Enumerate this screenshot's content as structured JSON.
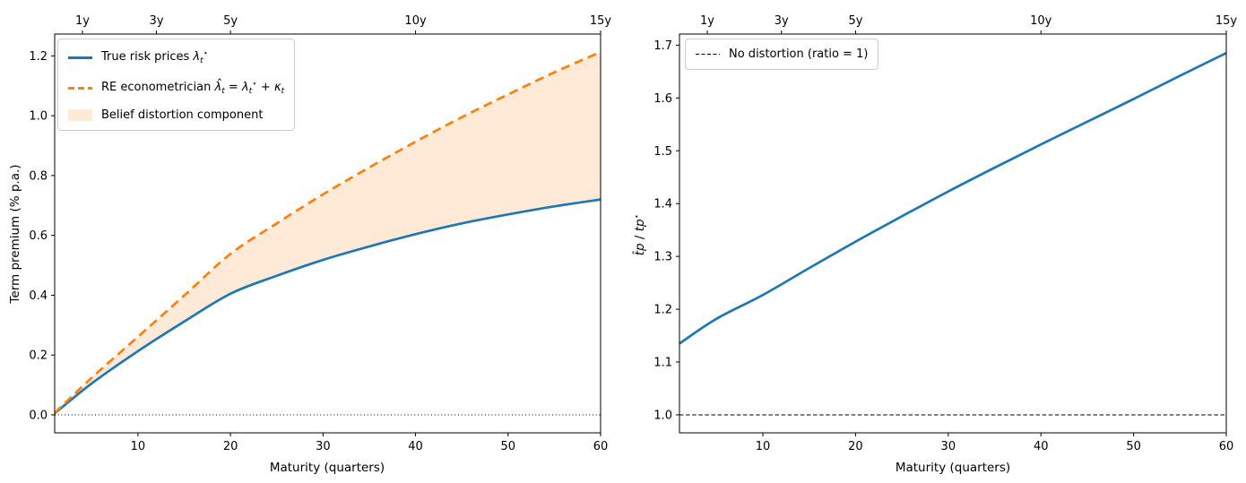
{
  "figure": {
    "background": "#ffffff"
  },
  "colors": {
    "true_line": "#1f77b4",
    "distorted_line": "#ff7f0e",
    "distortion_fill": "#ff7f0e",
    "reference_line": "#000000",
    "axis": "#000000",
    "legend_border": "#cccccc"
  },
  "chart_data": [
    {
      "type": "line",
      "panel": "left",
      "xlabel": "Maturity (quarters)",
      "ylabel": "Term premium (% p.a.)",
      "xlim": [
        1,
        60
      ],
      "ylim": [
        -0.06,
        1.273
      ],
      "x_ticks": [
        10,
        20,
        30,
        40,
        50,
        60
      ],
      "y_ticks": [
        0.0,
        0.2,
        0.4,
        0.6,
        0.8,
        1.0,
        1.2
      ],
      "top_ticks": {
        "positions_quarters": [
          4,
          12,
          20,
          40,
          60
        ],
        "labels": [
          "1y",
          "3y",
          "5y",
          "10y",
          "15y"
        ]
      },
      "grid": false,
      "legend_position": "upper left",
      "x": [
        1,
        5,
        10,
        15,
        20,
        25,
        30,
        35,
        40,
        45,
        50,
        55,
        60
      ],
      "series": [
        {
          "name": "True risk prices λₜ⋆",
          "name_rich": [
            {
              "t": "True risk prices "
            },
            {
              "t": "λ",
              "s": "it"
            },
            {
              "t": "t",
              "s": "sub"
            },
            {
              "t": "⋆",
              "s": "sup"
            }
          ],
          "color": "#1f77b4",
          "style": "solid",
          "values": [
            0.005,
            0.105,
            0.213,
            0.312,
            0.405,
            0.465,
            0.518,
            0.563,
            0.604,
            0.64,
            0.67,
            0.697,
            0.72
          ]
        },
        {
          "name": "RE econometrician λ̂ₜ = λₜ⋆ + κₜ",
          "name_rich": [
            {
              "t": "RE econometrician "
            },
            {
              "t": "λ̂",
              "s": "it"
            },
            {
              "t": "t",
              "s": "sub"
            },
            {
              "t": " = "
            },
            {
              "t": "λ",
              "s": "it"
            },
            {
              "t": "t",
              "s": "sub"
            },
            {
              "t": "⋆",
              "s": "sup"
            },
            {
              "t": " + "
            },
            {
              "t": "κ",
              "s": "it"
            },
            {
              "t": "t",
              "s": "sub"
            }
          ],
          "color": "#ff7f0e",
          "style": "dashed",
          "values": [
            0.006,
            0.124,
            0.261,
            0.399,
            0.538,
            0.64,
            0.737,
            0.827,
            0.913,
            0.995,
            1.071,
            1.145,
            1.213
          ]
        }
      ],
      "fill_between": {
        "label": "Belief distortion component",
        "lower_series": 0,
        "upper_series": 1,
        "color": "#ff7f0e",
        "opacity": 0.16
      },
      "hline": {
        "y": 0.0,
        "style": "dotted",
        "color": "#000000"
      }
    },
    {
      "type": "line",
      "panel": "right",
      "xlabel": "Maturity (quarters)",
      "ylabel": "t̂p / tp⋆",
      "ylabel_rich": [
        {
          "t": "t̂p",
          "s": "it"
        },
        {
          "t": " / "
        },
        {
          "t": "tp",
          "s": "it"
        },
        {
          "t": "⋆",
          "s": "sup"
        }
      ],
      "xlim": [
        1,
        60
      ],
      "ylim": [
        0.966,
        1.721
      ],
      "x_ticks": [
        10,
        20,
        30,
        40,
        50,
        60
      ],
      "y_ticks": [
        1.0,
        1.1,
        1.2,
        1.3,
        1.4,
        1.5,
        1.6,
        1.7
      ],
      "top_ticks": {
        "positions_quarters": [
          4,
          12,
          20,
          40,
          60
        ],
        "labels": [
          "1y",
          "3y",
          "5y",
          "10y",
          "15y"
        ]
      },
      "grid": false,
      "legend_position": "upper left",
      "x": [
        1,
        5,
        10,
        15,
        20,
        25,
        30,
        35,
        40,
        45,
        50,
        55,
        60
      ],
      "series": [
        {
          "name": "tp-hat over tp-star ratio",
          "color": "#1f77b4",
          "style": "solid",
          "values": [
            1.135,
            1.182,
            1.227,
            1.278,
            1.328,
            1.376,
            1.423,
            1.468,
            1.512,
            1.555,
            1.598,
            1.642,
            1.685
          ]
        }
      ],
      "hline": {
        "y": 1.0,
        "style": "dashed",
        "color": "#000000",
        "label": "No distortion (ratio = 1)"
      }
    }
  ]
}
